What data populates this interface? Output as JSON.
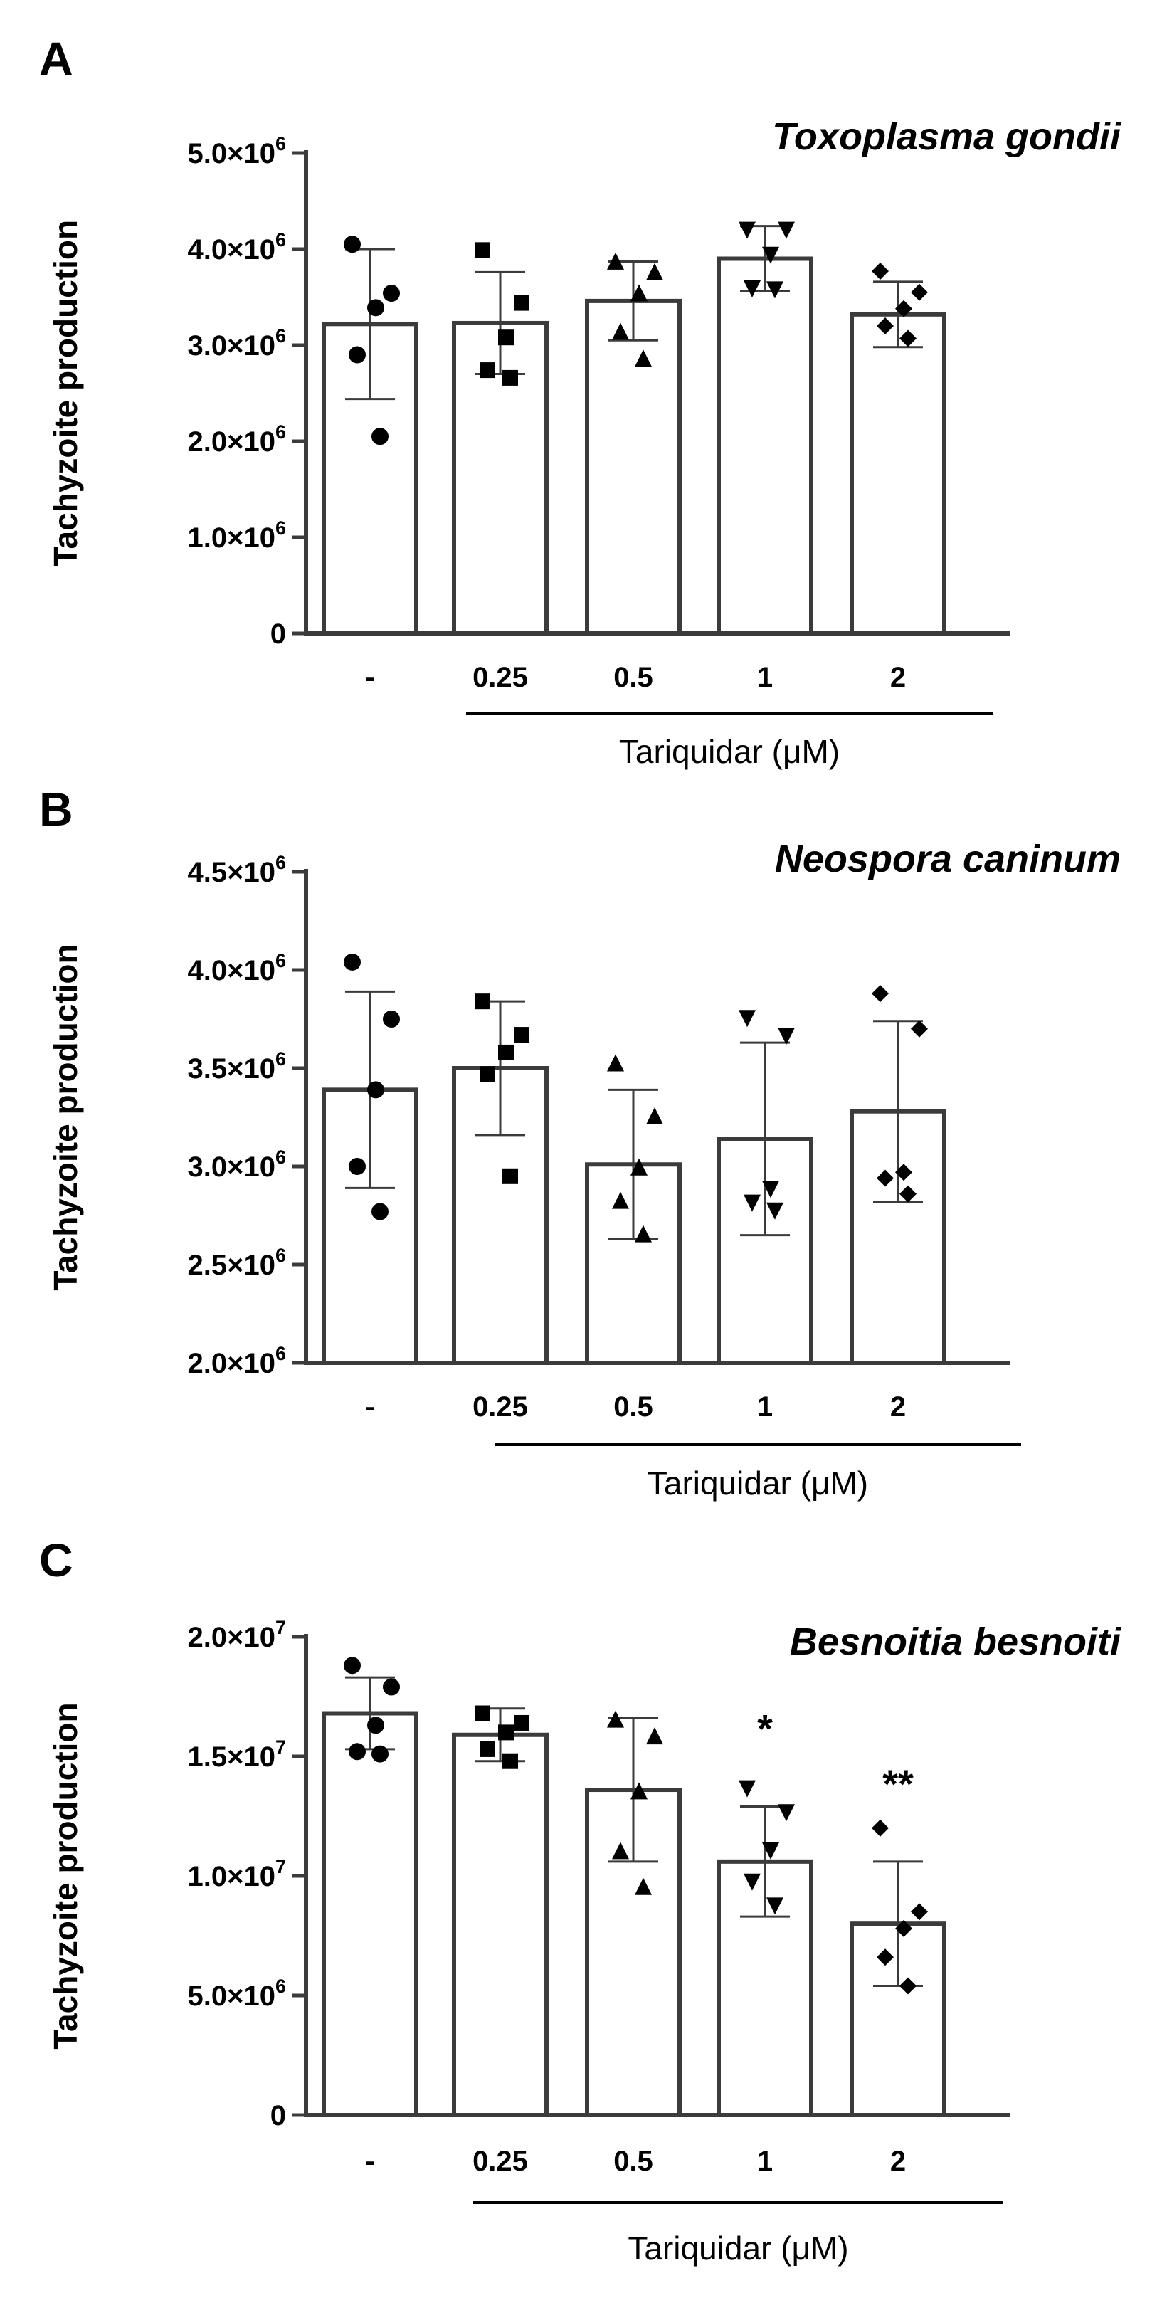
{
  "chart_data": [
    {
      "type": "bar",
      "panel_label": "A",
      "title": "Toxoplasma gondii",
      "ylabel": "Tachyzoite production",
      "xlabel": "Tariquidar (μM)",
      "categories": [
        "-",
        "0.25",
        "0.5",
        "1",
        "2"
      ],
      "ylim": [
        0,
        5000000
      ],
      "ytick_labels": [
        {
          "value": 0,
          "mantissa": "0"
        },
        {
          "value": 1000000,
          "mantissa": "1.0",
          "times": "×",
          "base": "10",
          "exponent": "6"
        },
        {
          "value": 2000000,
          "mantissa": "2.0",
          "times": "×",
          "base": "10",
          "exponent": "6"
        },
        {
          "value": 3000000,
          "mantissa": "3.0",
          "times": "×",
          "base": "10",
          "exponent": "6"
        },
        {
          "value": 4000000,
          "mantissa": "4.0",
          "times": "×",
          "base": "10",
          "exponent": "6"
        },
        {
          "value": 5000000,
          "mantissa": "5.0",
          "times": "×",
          "base": "10",
          "exponent": "6"
        }
      ],
      "means": [
        3220000,
        3230000,
        3460000,
        3900000,
        3320000
      ],
      "sd": [
        780000,
        530000,
        410000,
        340000,
        340000
      ],
      "points": [
        [
          4050000,
          3540000,
          3390000,
          2900000,
          2050000
        ],
        [
          3990000,
          3440000,
          3080000,
          2740000,
          2660000
        ],
        [
          3860000,
          3750000,
          3530000,
          3130000,
          2850000
        ],
        [
          4210000,
          4210000,
          3950000,
          3600000,
          3590000
        ],
        [
          3770000,
          3550000,
          3380000,
          3200000,
          3070000
        ]
      ],
      "markers": [
        "circle",
        "square",
        "triangle-up",
        "triangle-down",
        "diamond"
      ],
      "significance": [
        "",
        "",
        "",
        "",
        ""
      ]
    },
    {
      "type": "bar",
      "panel_label": "B",
      "title": "Neospora caninum",
      "ylabel": "Tachyzoite production",
      "xlabel": "Tariquidar (μM)",
      "categories": [
        "-",
        "0.25",
        "0.5",
        "1",
        "2"
      ],
      "ylim": [
        2000000,
        4500000
      ],
      "ytick_labels": [
        {
          "value": 2000000,
          "mantissa": "2.0",
          "times": "×",
          "base": "10",
          "exponent": "6"
        },
        {
          "value": 2500000,
          "mantissa": "2.5",
          "times": "×",
          "base": "10",
          "exponent": "6"
        },
        {
          "value": 3000000,
          "mantissa": "3.0",
          "times": "×",
          "base": "10",
          "exponent": "6"
        },
        {
          "value": 3500000,
          "mantissa": "3.5",
          "times": "×",
          "base": "10",
          "exponent": "6"
        },
        {
          "value": 4000000,
          "mantissa": "4.0",
          "times": "×",
          "base": "10",
          "exponent": "6"
        },
        {
          "value": 4500000,
          "mantissa": "4.5",
          "times": "×",
          "base": "10",
          "exponent": "6"
        }
      ],
      "means": [
        3390000,
        3500000,
        3010000,
        3140000,
        3280000
      ],
      "sd": [
        500000,
        340000,
        380000,
        490000,
        460000
      ],
      "points": [
        [
          4040000,
          3750000,
          3390000,
          3000000,
          2770000
        ],
        [
          3840000,
          3670000,
          3580000,
          3470000,
          2950000
        ],
        [
          3520000,
          3250000,
          2990000,
          2820000,
          2650000
        ],
        [
          3760000,
          3670000,
          2890000,
          2820000,
          2780000
        ],
        [
          3880000,
          3700000,
          2970000,
          2940000,
          2860000
        ]
      ],
      "markers": [
        "circle",
        "square",
        "triangle-up",
        "triangle-down",
        "diamond"
      ],
      "significance": [
        "",
        "",
        "",
        "",
        ""
      ]
    },
    {
      "type": "bar",
      "panel_label": "C",
      "title": "Besnoitia besnoiti",
      "ylabel": "Tachyzoite production",
      "xlabel": "Tariquidar (μM)",
      "categories": [
        "-",
        "0.25",
        "0.5",
        "1",
        "2"
      ],
      "ylim": [
        0,
        20000000
      ],
      "ytick_labels": [
        {
          "value": 0,
          "mantissa": "0"
        },
        {
          "value": 5000000,
          "mantissa": "5.0",
          "times": "×",
          "base": "10",
          "exponent": "6"
        },
        {
          "value": 10000000,
          "mantissa": "1.0",
          "times": "×",
          "base": "10",
          "exponent": "7"
        },
        {
          "value": 15000000,
          "mantissa": "1.5",
          "times": "×",
          "base": "10",
          "exponent": "7"
        },
        {
          "value": 20000000,
          "mantissa": "2.0",
          "times": "×",
          "base": "10",
          "exponent": "7"
        }
      ],
      "means": [
        16800000,
        15900000,
        13600000,
        10600000,
        8000000
      ],
      "sd": [
        1500000,
        1100000,
        3000000,
        2300000,
        2600000
      ],
      "points": [
        [
          18800000,
          17900000,
          16300000,
          15200000,
          15100000
        ],
        [
          16800000,
          16400000,
          16000000,
          15300000,
          14800000
        ],
        [
          16500000,
          15800000,
          13500000,
          11000000,
          9500000
        ],
        [
          13700000,
          12700000,
          11100000,
          9800000,
          8800000
        ],
        [
          12000000,
          8500000,
          7800000,
          6600000,
          5400000
        ]
      ],
      "markers": [
        "circle",
        "square",
        "triangle-up",
        "triangle-down",
        "diamond"
      ],
      "significance": [
        "",
        "",
        "",
        "*",
        "**"
      ]
    }
  ]
}
